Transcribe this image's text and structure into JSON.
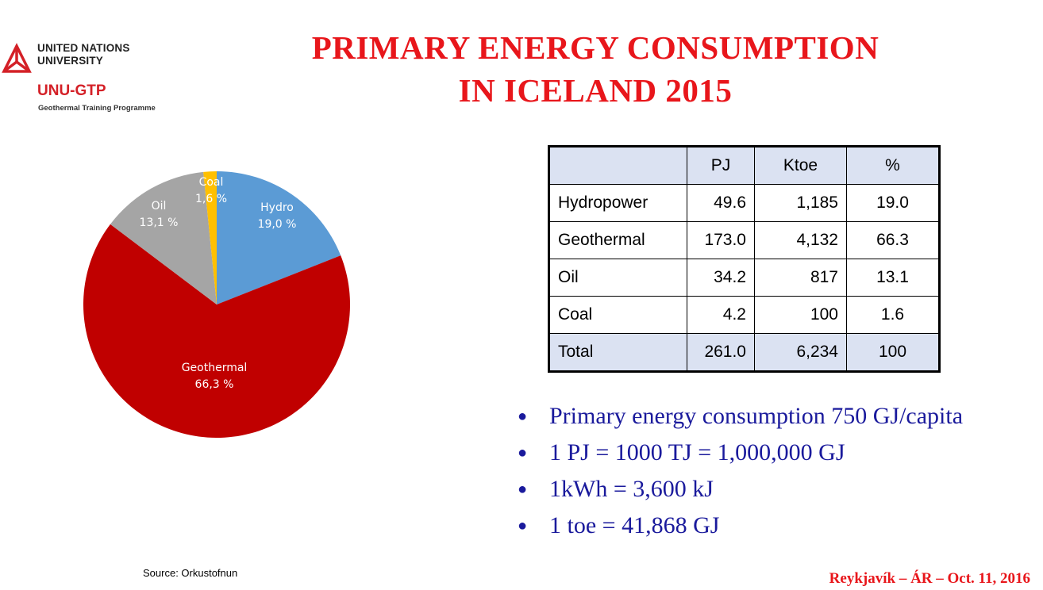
{
  "logo": {
    "org_line1": "UNITED NATIONS",
    "org_line2": "UNIVERSITY",
    "programme_short": "UNU-GTP",
    "programme_full": "Geothermal Training Programme",
    "accent_color": "#d42027"
  },
  "title": {
    "line1": "PRIMARY ENERGY CONSUMPTION",
    "line2": "IN ICELAND 2015",
    "color": "#e8161b"
  },
  "chart_data": {
    "type": "pie",
    "slices": [
      {
        "name": "Hydro",
        "label": "19,0 %",
        "value": 19.0,
        "color": "#5b9bd5"
      },
      {
        "name": "Geothermal",
        "label": "66,3 %",
        "value": 66.3,
        "color": "#c00000"
      },
      {
        "name": "Oil",
        "label": "13,1 %",
        "value": 13.1,
        "color": "#a5a5a5"
      },
      {
        "name": "Coal",
        "label": "1,6 %",
        "value": 1.6,
        "color": "#ffc000"
      }
    ]
  },
  "table": {
    "headers": [
      "",
      "PJ",
      "Ktoe",
      "%"
    ],
    "rows": [
      [
        "Hydropower",
        "49.6",
        "1,185",
        "19.0"
      ],
      [
        "Geothermal",
        "173.0",
        "4,132",
        "66.3"
      ],
      [
        "Oil",
        "34.2",
        "817",
        "13.1"
      ],
      [
        "Coal",
        "4.2",
        "100",
        "1.6"
      ]
    ],
    "total": [
      "Total",
      "261.0",
      "6,234",
      "100"
    ],
    "header_bg": "#dbe2f2"
  },
  "notes": [
    "Primary energy consumption 750 GJ/capita",
    "1 PJ = 1000 TJ = 1,000,000 GJ",
    "1kWh = 3,600 kJ",
    "1 toe = 41,868 GJ"
  ],
  "source": "Source: Orkustofnun",
  "footer": "Reykjavík – ÁR – Oct. 11, 2016"
}
